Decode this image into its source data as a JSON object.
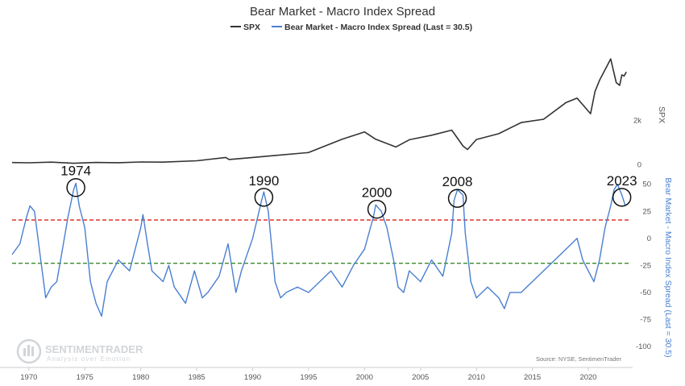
{
  "chart_data": {
    "type": "line",
    "title": "Bear Market - Macro Index Spread",
    "legend_position": "top-center",
    "series": [
      {
        "name": "SPX",
        "color": "#333333",
        "axis": "spx",
        "points": [
          [
            1968.5,
            100
          ],
          [
            1970,
            90
          ],
          [
            1972,
            118
          ],
          [
            1974,
            70
          ],
          [
            1976,
            105
          ],
          [
            1978,
            95
          ],
          [
            1980,
            125
          ],
          [
            1982,
            120
          ],
          [
            1985,
            180
          ],
          [
            1987.6,
            330
          ],
          [
            1987.9,
            240
          ],
          [
            1990,
            330
          ],
          [
            1992,
            420
          ],
          [
            1995,
            550
          ],
          [
            1997,
            950
          ],
          [
            1998,
            1150
          ],
          [
            2000,
            1480
          ],
          [
            2001,
            1150
          ],
          [
            2002.8,
            800
          ],
          [
            2004,
            1130
          ],
          [
            2006,
            1330
          ],
          [
            2007.8,
            1560
          ],
          [
            2008.8,
            850
          ],
          [
            2009.2,
            690
          ],
          [
            2010,
            1140
          ],
          [
            2012,
            1400
          ],
          [
            2014,
            1900
          ],
          [
            2016,
            2050
          ],
          [
            2018,
            2800
          ],
          [
            2019,
            3000
          ],
          [
            2020.2,
            2300
          ],
          [
            2020.6,
            3300
          ],
          [
            2021,
            3800
          ],
          [
            2022,
            4770
          ],
          [
            2022.5,
            3700
          ],
          [
            2022.8,
            3580
          ],
          [
            2023,
            4050
          ],
          [
            2023.2,
            4000
          ],
          [
            2023.4,
            4180
          ]
        ]
      },
      {
        "name": "Bear Market - Macro Index Spread (Last = 30.5)",
        "color": "#4a7fd0",
        "axis": "spread",
        "points": [
          [
            1968.5,
            -15
          ],
          [
            1969.2,
            -5
          ],
          [
            1969.8,
            20
          ],
          [
            1970.1,
            30
          ],
          [
            1970.5,
            25
          ],
          [
            1971,
            -15
          ],
          [
            1971.5,
            -55
          ],
          [
            1972,
            -45
          ],
          [
            1972.5,
            -40
          ],
          [
            1973,
            -10
          ],
          [
            1973.5,
            20
          ],
          [
            1974,
            45
          ],
          [
            1974.2,
            51
          ],
          [
            1974.5,
            30
          ],
          [
            1975,
            10
          ],
          [
            1975.5,
            -40
          ],
          [
            1976,
            -60
          ],
          [
            1976.5,
            -72
          ],
          [
            1977,
            -40
          ],
          [
            1978,
            -20
          ],
          [
            1979,
            -30
          ],
          [
            1980,
            10
          ],
          [
            1980.2,
            22
          ],
          [
            1980.6,
            -5
          ],
          [
            1981,
            -30
          ],
          [
            1982,
            -40
          ],
          [
            1982.5,
            -25
          ],
          [
            1983,
            -45
          ],
          [
            1984,
            -60
          ],
          [
            1984.8,
            -30
          ],
          [
            1985.5,
            -55
          ],
          [
            1986,
            -50
          ],
          [
            1987,
            -35
          ],
          [
            1987.8,
            -5
          ],
          [
            1988.5,
            -50
          ],
          [
            1989,
            -30
          ],
          [
            1990,
            0
          ],
          [
            1990.8,
            35
          ],
          [
            1991,
            43
          ],
          [
            1991.4,
            25
          ],
          [
            1992,
            -40
          ],
          [
            1992.5,
            -55
          ],
          [
            1993,
            -50
          ],
          [
            1994,
            -45
          ],
          [
            1995,
            -50
          ],
          [
            1996,
            -40
          ],
          [
            1997,
            -30
          ],
          [
            1998,
            -45
          ],
          [
            1999,
            -25
          ],
          [
            2000,
            -10
          ],
          [
            2000.8,
            20
          ],
          [
            2001,
            31
          ],
          [
            2001.5,
            25
          ],
          [
            2002,
            10
          ],
          [
            2002.6,
            -20
          ],
          [
            2003,
            -45
          ],
          [
            2003.5,
            -50
          ],
          [
            2004,
            -30
          ],
          [
            2005,
            -40
          ],
          [
            2006,
            -20
          ],
          [
            2007,
            -35
          ],
          [
            2007.8,
            5
          ],
          [
            2008,
            35
          ],
          [
            2008.3,
            45
          ],
          [
            2008.8,
            40
          ],
          [
            2009,
            5
          ],
          [
            2009.5,
            -40
          ],
          [
            2010,
            -55
          ],
          [
            2011,
            -45
          ],
          [
            2012,
            -55
          ],
          [
            2012.5,
            -65
          ],
          [
            2013,
            -50
          ],
          [
            2014,
            -50
          ],
          [
            2015,
            -40
          ],
          [
            2016,
            -30
          ],
          [
            2017,
            -20
          ],
          [
            2018,
            -10
          ],
          [
            2019,
            0
          ],
          [
            2019.5,
            -20
          ],
          [
            2020,
            -30
          ],
          [
            2020.5,
            -40
          ],
          [
            2021,
            -20
          ],
          [
            2021.5,
            10
          ],
          [
            2022,
            30
          ],
          [
            2022.3,
            45
          ],
          [
            2022.6,
            50
          ],
          [
            2023,
            40
          ],
          [
            2023.3,
            30.5
          ]
        ]
      }
    ],
    "x_axis": {
      "min": 1968.5,
      "max": 2023.6,
      "ticks": [
        "1970",
        "1975",
        "1980",
        "1985",
        "1990",
        "1995",
        "2000",
        "2005",
        "2010",
        "2015",
        "2020"
      ]
    },
    "spx_axis": {
      "title": "SPX",
      "min": -200,
      "max": 4700,
      "ticks": [
        "0",
        "2k"
      ]
    },
    "spread_axis": {
      "title": "Bear Market - Macro Index Spread (Last = 30.5)",
      "min": -100,
      "max": 55,
      "ticks": [
        "-100",
        "-75",
        "-50",
        "-25",
        "0",
        "25",
        "50"
      ]
    },
    "reference_lines": [
      {
        "y": 17,
        "color": "#e0332b",
        "style": "dashed",
        "axis": "spread"
      },
      {
        "y": -23,
        "color": "#3a8a2a",
        "style": "dashed",
        "axis": "spread"
      }
    ],
    "annotations": [
      {
        "label": "1974",
        "x": 1974.2,
        "y": 47
      },
      {
        "label": "1990",
        "x": 1991.0,
        "y": 38
      },
      {
        "label": "2000",
        "x": 2001.1,
        "y": 27
      },
      {
        "label": "2008",
        "x": 2008.3,
        "y": 37
      },
      {
        "label": "2023",
        "x": 2023.0,
        "y": 38
      }
    ],
    "grid": false
  },
  "watermark": {
    "brand": "SENTIMENTRADER",
    "tagline": "Analysis over Emotion"
  },
  "source": "Source: NYSE, SentimenTrader"
}
